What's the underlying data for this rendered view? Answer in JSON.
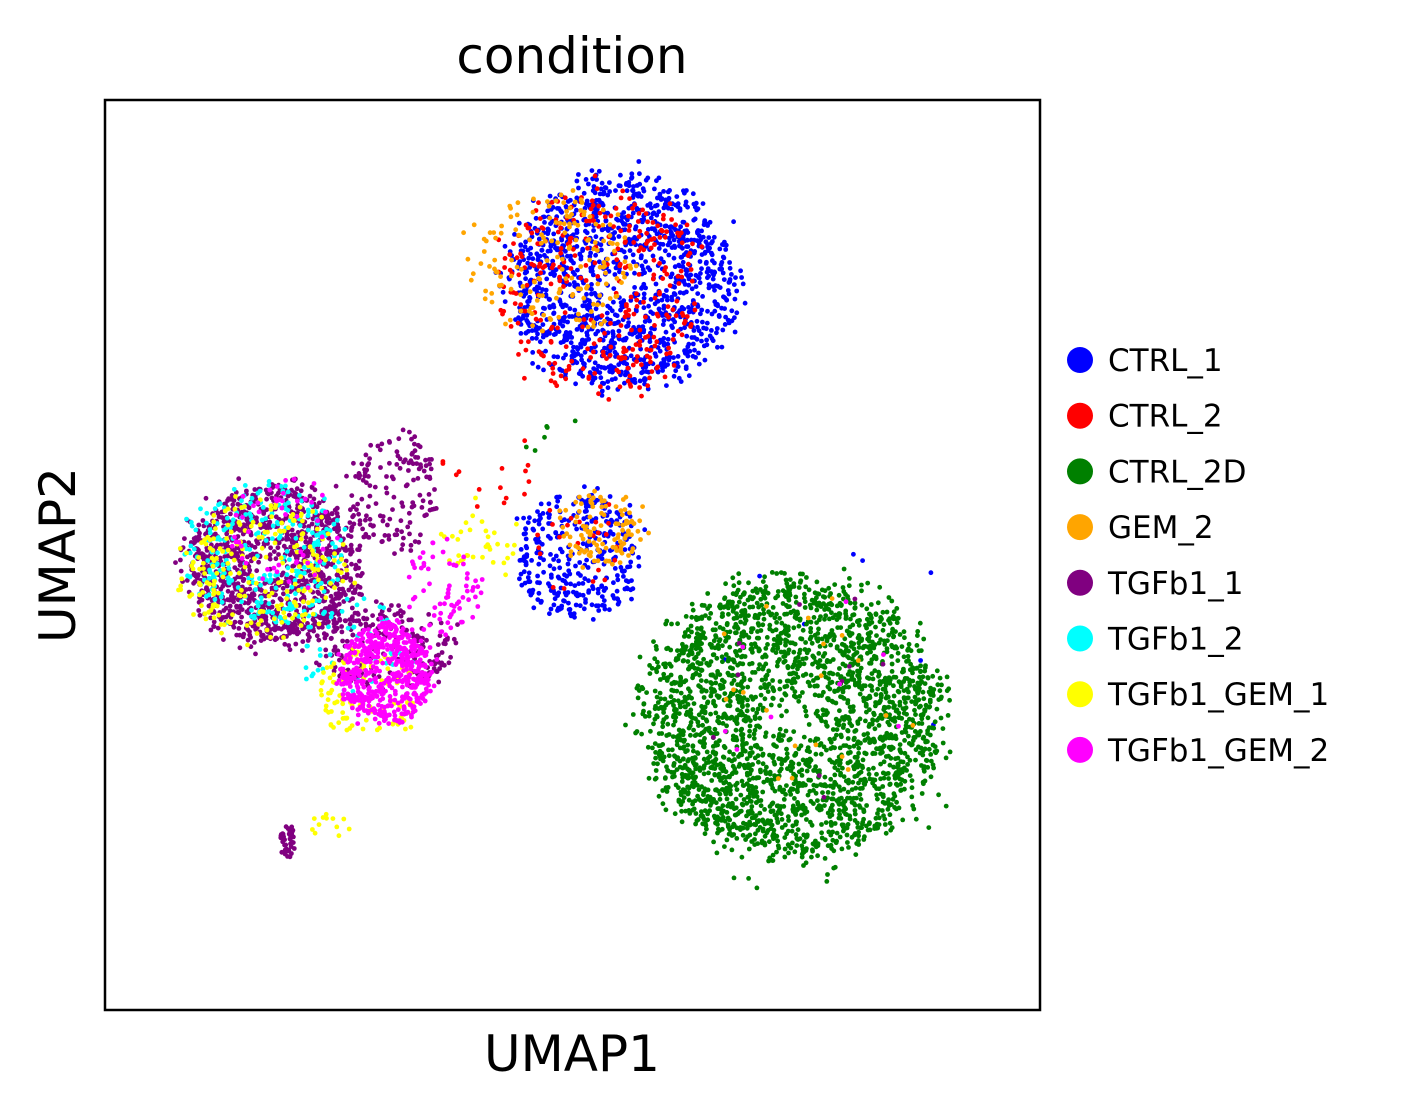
{
  "chart_data": {
    "type": "scatter",
    "title": "condition",
    "xlabel": "UMAP1",
    "ylabel": "UMAP2",
    "xlim": [
      0,
      100
    ],
    "ylim": [
      0,
      100
    ],
    "ticks": "none",
    "grid": false,
    "legend_position": "right",
    "series": [
      {
        "name": "CTRL_1",
        "color": "#0000ff",
        "clusters": [
          {
            "center": [
              55.5,
              80.0
            ],
            "spread": [
              11.0,
              10.5
            ],
            "n": 1300
          },
          {
            "center": [
              50.5,
              50.0
            ],
            "spread": [
              6.0,
              6.5
            ],
            "n": 330
          },
          {
            "center": [
              78.0,
              40.0
            ],
            "spread": [
              13.0,
              13.0
            ],
            "n": 8
          }
        ]
      },
      {
        "name": "CTRL_2",
        "color": "#ff0000",
        "clusters": [
          {
            "center": [
              53.0,
              79.0
            ],
            "spread": [
              10.0,
              10.0
            ],
            "n": 330
          },
          {
            "center": [
              50.0,
              51.0
            ],
            "spread": [
              5.0,
              5.0
            ],
            "n": 25
          },
          {
            "center": [
              41.0,
              59.0
            ],
            "spread": [
              5.0,
              5.0
            ],
            "n": 15
          }
        ]
      },
      {
        "name": "CTRL_2D",
        "color": "#008000",
        "clusters": [
          {
            "center": [
              73.5,
              32.0
            ],
            "spread": [
              14.5,
              14.0
            ],
            "n": 2600
          },
          {
            "center": [
              48.0,
              62.0
            ],
            "spread": [
              4.0,
              4.0
            ],
            "n": 6
          }
        ]
      },
      {
        "name": "GEM_2",
        "color": "#ffa500",
        "clusters": [
          {
            "center": [
              48.0,
              82.0
            ],
            "spread": [
              8.0,
              7.0
            ],
            "n": 170
          },
          {
            "center": [
              53.0,
              53.0
            ],
            "spread": [
              4.5,
              4.0
            ],
            "n": 110
          },
          {
            "center": [
              75.0,
              35.0
            ],
            "spread": [
              12.0,
              12.0
            ],
            "n": 20
          }
        ]
      },
      {
        "name": "TGFb1_1",
        "color": "#800080",
        "clusters": [
          {
            "center": [
              18.0,
              49.0
            ],
            "spread": [
              8.5,
              8.0
            ],
            "n": 1150
          },
          {
            "center": [
              31.0,
              57.0
            ],
            "spread": [
              4.5,
              6.0
            ],
            "n": 150
          },
          {
            "center": [
              30.0,
              40.0
            ],
            "spread": [
              6.5,
              4.5
            ],
            "n": 220
          },
          {
            "center": [
              19.5,
              18.5
            ],
            "spread": [
              0.8,
              1.6
            ],
            "n": 40
          },
          {
            "center": [
              75.0,
              35.0
            ],
            "spread": [
              12.0,
              12.0
            ],
            "n": 10
          }
        ]
      },
      {
        "name": "TGFb1_2",
        "color": "#00ffff",
        "clusters": [
          {
            "center": [
              17.0,
              50.0
            ],
            "spread": [
              8.0,
              7.0
            ],
            "n": 270
          },
          {
            "center": [
              27.0,
              40.0
            ],
            "spread": [
              6.0,
              5.0
            ],
            "n": 50
          }
        ]
      },
      {
        "name": "TGFb1_GEM_1",
        "color": "#ffff00",
        "clusters": [
          {
            "center": [
              17.0,
              48.0
            ],
            "spread": [
              8.0,
              7.0
            ],
            "n": 220
          },
          {
            "center": [
              28.0,
              35.0
            ],
            "spread": [
              5.0,
              5.0
            ],
            "n": 110
          },
          {
            "center": [
              40.0,
              52.0
            ],
            "spread": [
              4.0,
              4.0
            ],
            "n": 35
          },
          {
            "center": [
              24.0,
              20.0
            ],
            "spread": [
              2.0,
              1.5
            ],
            "n": 12
          }
        ]
      },
      {
        "name": "TGFb1_GEM_2",
        "color": "#ff00ff",
        "clusters": [
          {
            "center": [
              30.0,
              37.0
            ],
            "spread": [
              4.5,
              5.0
            ],
            "n": 520
          },
          {
            "center": [
              36.0,
              46.0
            ],
            "spread": [
              4.0,
              5.0
            ],
            "n": 70
          },
          {
            "center": [
              19.0,
              53.0
            ],
            "spread": [
              6.0,
              6.0
            ],
            "n": 50
          },
          {
            "center": [
              75.0,
              35.0
            ],
            "spread": [
              12.0,
              12.0
            ],
            "n": 8
          }
        ]
      }
    ]
  }
}
